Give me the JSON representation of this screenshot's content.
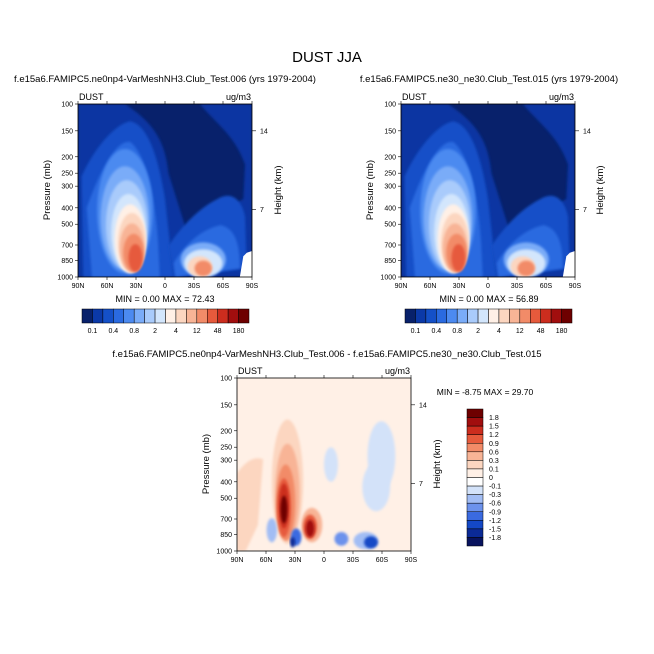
{
  "main_title": "DUST JJA",
  "colors": {
    "abs_scale": [
      "#08216b",
      "#0b39a8",
      "#1450c8",
      "#2a6ae0",
      "#4c8af0",
      "#7aacf8",
      "#a9cbfb",
      "#d3e6fc",
      "#fff0e6",
      "#fcd6c0",
      "#f8b496",
      "#f28b68",
      "#e65a3c",
      "#cc2d1e",
      "#a10e0e",
      "#6e0000"
    ],
    "diff_scale": [
      "#08135e",
      "#0b2a96",
      "#1448c6",
      "#3a6ae0",
      "#6c92ec",
      "#a2bdf4",
      "#d3e2f9",
      "#ffffff",
      "#fff0e6",
      "#fcd6c0",
      "#f8b496",
      "#f28b68",
      "#e65a3c",
      "#cc2d1e",
      "#a10e0e",
      "#6e0000"
    ]
  },
  "chart_data": [
    {
      "type": "heatmap",
      "title": "f.e15a6.FAMIPC5.ne0np4-VarMeshNH3.Club_Test.006 (yrs 1979-2004)",
      "variable_label": "DUST",
      "units_label": "ug/m3",
      "ylabel": "Pressure (mb)",
      "ylabel_right": "Height (km)",
      "x_ticks": [
        "90N",
        "60N",
        "30N",
        "0",
        "30S",
        "60S",
        "90S"
      ],
      "y_ticks": [
        "100",
        "150",
        "200",
        "250",
        "300",
        "400",
        "500",
        "700",
        "850",
        "1000"
      ],
      "y_ticks_right": [
        "14",
        "7"
      ],
      "stats": "MIN =  0.00  MAX = 72.43",
      "min": 0.0,
      "max": 72.43
    },
    {
      "type": "heatmap",
      "title": "f.e15a6.FAMIPC5.ne30_ne30.Club_Test.015 (yrs 1979-2004)",
      "variable_label": "DUST",
      "units_label": "ug/m3",
      "ylabel": "Pressure (mb)",
      "ylabel_right": "Height (km)",
      "x_ticks": [
        "90N",
        "60N",
        "30N",
        "0",
        "30S",
        "60S",
        "90S"
      ],
      "y_ticks": [
        "100",
        "150",
        "200",
        "250",
        "300",
        "400",
        "500",
        "700",
        "850",
        "1000"
      ],
      "y_ticks_right": [
        "14",
        "7"
      ],
      "stats": "MIN =  0.00  MAX = 56.89",
      "min": 0.0,
      "max": 56.89
    },
    {
      "type": "heatmap",
      "title": "f.e15a6.FAMIPC5.ne0np4-VarMeshNH3.Club_Test.006 - f.e15a6.FAMIPC5.ne30_ne30.Club_Test.015",
      "variable_label": "DUST",
      "units_label": "ug/m3",
      "ylabel": "Pressure (mb)",
      "ylabel_right": "Height (km)",
      "x_ticks": [
        "90N",
        "60N",
        "30N",
        "0",
        "30S",
        "60S",
        "90S"
      ],
      "y_ticks": [
        "100",
        "150",
        "200",
        "250",
        "300",
        "400",
        "500",
        "700",
        "850",
        "1000"
      ],
      "y_ticks_right": [
        "14",
        "7"
      ],
      "stats": "MIN = -8.75  MAX = 29.70",
      "min": -8.75,
      "max": 29.7
    }
  ],
  "abs_colorbar": {
    "labels": [
      "0.1",
      "0.4",
      "0.8",
      "2",
      "4",
      "12",
      "48",
      "180"
    ]
  },
  "diff_colorbar": {
    "labels": [
      "1.8",
      "1.5",
      "1.2",
      "0.9",
      "0.6",
      "0.3",
      "0.1",
      "0",
      "-0.1",
      "-0.3",
      "-0.6",
      "-0.9",
      "-1.2",
      "-1.5",
      "-1.8"
    ]
  }
}
